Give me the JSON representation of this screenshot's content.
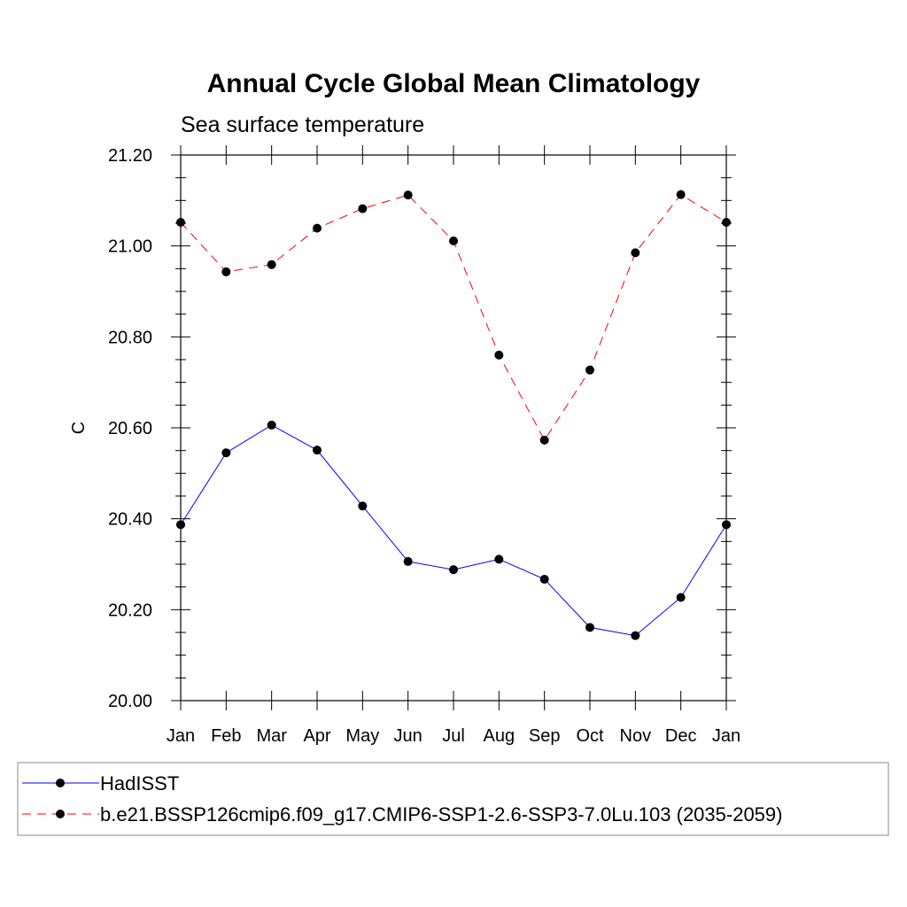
{
  "chart_data": {
    "type": "line",
    "title": "Annual Cycle Global Mean Climatology",
    "subtitle": "Sea surface temperature",
    "xlabel": "",
    "ylabel": "C",
    "categories": [
      "Jan",
      "Feb",
      "Mar",
      "Apr",
      "May",
      "Jun",
      "Jul",
      "Aug",
      "Sep",
      "Oct",
      "Nov",
      "Dec",
      "Jan"
    ],
    "ylim": [
      20.0,
      21.2
    ],
    "yticks": [
      "20.00",
      "20.20",
      "20.40",
      "20.60",
      "20.80",
      "21.00",
      "21.20"
    ],
    "grid": false,
    "legend_position": "bottom",
    "series": [
      {
        "name": "HadISST",
        "color": "#0000ff",
        "line_style": "solid",
        "marker": "circle",
        "values": [
          20.387,
          20.545,
          20.606,
          20.551,
          20.428,
          20.306,
          20.288,
          20.311,
          20.267,
          20.161,
          20.143,
          20.227,
          20.387
        ]
      },
      {
        "name": "b.e21.BSSP126cmip6.f09_g17.CMIP6-SSP1-2.6-SSP3-7.0Lu.103 (2035-2059)",
        "color": "#ff0000",
        "line_style": "dashed",
        "marker": "circle",
        "values": [
          21.052,
          20.943,
          20.959,
          21.039,
          21.082,
          21.112,
          21.011,
          20.76,
          20.573,
          20.727,
          20.985,
          21.113,
          21.052
        ]
      }
    ]
  }
}
